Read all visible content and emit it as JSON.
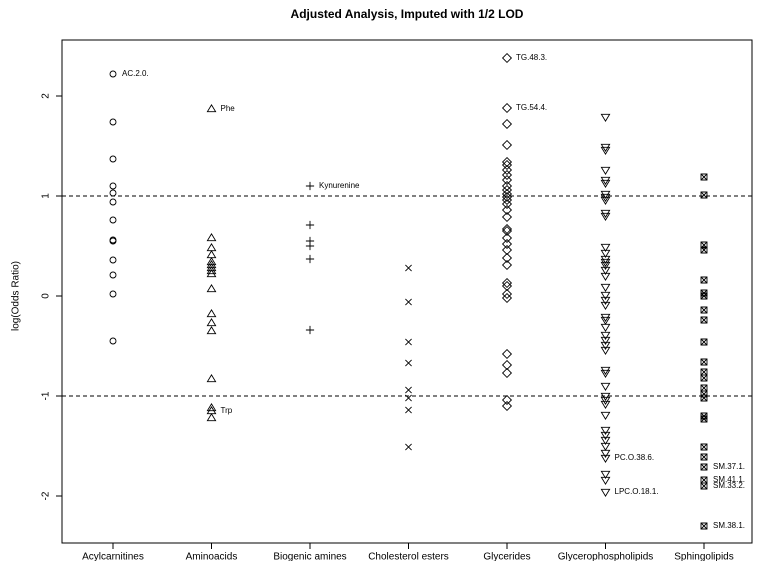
{
  "chart_data": {
    "type": "strip",
    "title": "Adjusted Analysis, Imputed with 1/2 LOD",
    "y_label": "log(Odds Ratio)",
    "ylim": [
      -2.47,
      2.56
    ],
    "yticks": [
      -2,
      -1,
      0,
      1,
      2
    ],
    "hlines": [
      1,
      -1
    ],
    "categories": [
      "Acylcarnitines",
      "Aminoacids",
      "Biogenic amines",
      "Cholesterol esters",
      "Glycerides",
      "Glycerophospholipids",
      "Sphingolipids"
    ],
    "series": [
      {
        "name": "Acylcarnitines",
        "marker": "circle",
        "color": "#000000",
        "values": [
          2.22,
          1.74,
          1.37,
          1.1,
          1.03,
          0.94,
          0.76,
          0.56,
          0.55,
          0.36,
          0.21,
          0.02,
          -0.45
        ],
        "labels": [
          "AC.2.0.",
          null,
          null,
          null,
          null,
          null,
          null,
          null,
          null,
          null,
          null,
          null,
          null
        ]
      },
      {
        "name": "Aminoacids",
        "marker": "triangle",
        "color": "#000000",
        "values": [
          1.87,
          0.58,
          0.48,
          0.41,
          0.34,
          0.31,
          0.28,
          0.25,
          0.22,
          0.07,
          -0.18,
          -0.27,
          -0.35,
          -0.83,
          -1.12,
          -1.15,
          -1.22
        ],
        "labels": [
          "Phe",
          null,
          null,
          null,
          null,
          null,
          null,
          null,
          null,
          null,
          null,
          null,
          null,
          null,
          null,
          "Trp",
          null
        ]
      },
      {
        "name": "Biogenic amines",
        "marker": "plus",
        "color": "#000000",
        "values": [
          1.1,
          0.71,
          0.55,
          0.5,
          0.37,
          -0.34
        ],
        "labels": [
          "Kynurenine",
          null,
          null,
          null,
          null,
          null
        ]
      },
      {
        "name": "Cholesterol esters",
        "marker": "x",
        "color": "#000000",
        "values": [
          0.28,
          -0.06,
          -0.46,
          -0.67,
          -0.94,
          -1.02,
          -1.14,
          -1.51
        ],
        "labels": [
          null,
          null,
          null,
          null,
          null,
          null,
          null,
          null
        ]
      },
      {
        "name": "Glycerides",
        "marker": "diamond",
        "color": "#000000",
        "values": [
          2.38,
          1.88,
          1.72,
          1.51,
          1.34,
          1.31,
          1.26,
          1.21,
          1.16,
          1.1,
          1.06,
          1.02,
          0.99,
          0.96,
          0.92,
          0.86,
          0.79,
          0.67,
          0.65,
          0.58,
          0.52,
          0.46,
          0.38,
          0.31,
          0.13,
          0.1,
          0.02,
          -0.02,
          -0.58,
          -0.69,
          -0.77,
          -1.04,
          -1.1
        ],
        "labels": [
          "TG.48.3.",
          "TG.54.4.",
          null,
          null,
          null,
          null,
          null,
          null,
          null,
          null,
          null,
          null,
          null,
          null,
          null,
          null,
          null,
          null,
          null,
          null,
          null,
          null,
          null,
          null,
          null,
          null,
          null,
          null,
          null,
          null,
          null,
          null,
          null
        ]
      },
      {
        "name": "Glycerophospholipids",
        "marker": "triangle-down",
        "color": "#000000",
        "values": [
          1.79,
          1.49,
          1.46,
          1.26,
          1.16,
          1.13,
          1.02,
          0.99,
          0.96,
          0.83,
          0.8,
          0.49,
          0.43,
          0.37,
          0.34,
          0.31,
          0.26,
          0.2,
          0.09,
          0.01,
          -0.04,
          -0.09,
          -0.21,
          -0.24,
          -0.31,
          -0.39,
          -0.44,
          -0.49,
          -0.54,
          -0.74,
          -0.77,
          -0.9,
          -1.0,
          -1.04,
          -1.08,
          -1.19,
          -1.34,
          -1.39,
          -1.44,
          -1.5,
          -1.57,
          -1.62,
          -1.78,
          -1.84,
          -1.96
        ],
        "labels": [
          null,
          null,
          null,
          null,
          null,
          null,
          null,
          null,
          null,
          null,
          null,
          null,
          null,
          null,
          null,
          null,
          null,
          null,
          null,
          null,
          null,
          null,
          null,
          null,
          null,
          null,
          null,
          null,
          null,
          null,
          null,
          null,
          null,
          null,
          null,
          null,
          null,
          null,
          null,
          null,
          null,
          "PC.O.38.6.",
          null,
          null,
          "LPC.O.18.1."
        ]
      },
      {
        "name": "Sphingolipids",
        "marker": "square-x",
        "color": "#000000",
        "values": [
          1.19,
          1.01,
          0.51,
          0.46,
          0.16,
          0.03,
          0.0,
          -0.14,
          -0.24,
          -0.46,
          -0.66,
          -0.76,
          -0.82,
          -0.92,
          -0.98,
          -1.02,
          -1.2,
          -1.23,
          -1.51,
          -1.61,
          -1.71,
          -1.84,
          -1.9,
          -2.3
        ],
        "labels": [
          null,
          null,
          null,
          null,
          null,
          null,
          null,
          null,
          null,
          null,
          null,
          null,
          null,
          null,
          null,
          null,
          null,
          null,
          null,
          null,
          "SM.37.1.",
          "SM.41.1.",
          "SM.33.2.",
          "SM.38.1."
        ]
      }
    ]
  }
}
